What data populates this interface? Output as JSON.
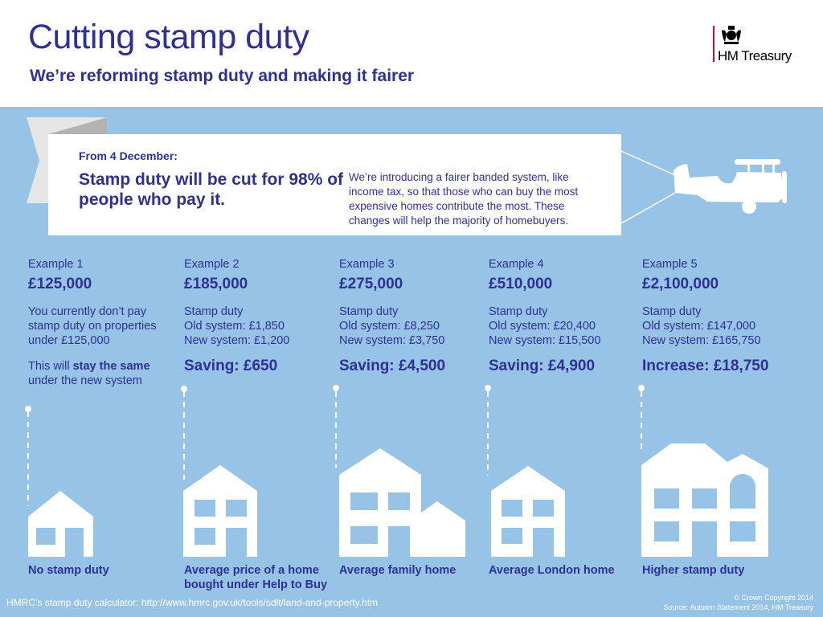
{
  "header": {
    "title": "Cutting stamp duty",
    "subtitle": "We’re reforming stamp duty and making it fairer",
    "logo_text": "HM Treasury"
  },
  "banner": {
    "from": "From 4 December:",
    "headline": "Stamp duty will be cut for 98% of people who pay it.",
    "description": "We’re introducing a fairer banded system, like income tax, so that those who can buy the most expensive homes contribute the most. These changes will help the majority of homebuyers."
  },
  "examples": [
    {
      "label": "Example 1",
      "price": "£125,000",
      "body": "You currently don’t pay stamp duty on properties under £125,000",
      "note_pre": "This will ",
      "note_bold": "stay the same",
      "note_post": " under the new system",
      "caption": "No stamp duty"
    },
    {
      "label": "Example 2",
      "price": "£185,000",
      "line1": "Stamp duty",
      "line2": "Old system: £1,850",
      "line3": "New system: £1,200",
      "result": "Saving: £650",
      "caption": "Average price of a home bought under Help to Buy"
    },
    {
      "label": "Example 3",
      "price": "£275,000",
      "line1": "Stamp duty",
      "line2": "Old system: £8,250",
      "line3": "New system: £3,750",
      "result": "Saving: £4,500",
      "caption": "Average family home"
    },
    {
      "label": "Example 4",
      "price": "£510,000",
      "line1": "Stamp duty",
      "line2": "Old system: £20,400",
      "line3": "New system: £15,500",
      "result": "Saving: £4,900",
      "caption": "Average London home"
    },
    {
      "label": "Example 5",
      "price": "£2,100,000",
      "line1": "Stamp duty",
      "line2": "Old system: £147,000",
      "line3": "New system: £165,750",
      "result": "Increase: £18,750",
      "caption": "Higher stamp duty"
    }
  ],
  "footer": {
    "calculator": "HMRC’s stamp duty calculator: http://www.hmrc.gov.uk/tools/sdlt/land-and-property.htm",
    "copyright": "© Crown Copyright 2014",
    "source": "Source: Autumn Statement 2014, HM Treasury"
  },
  "colors": {
    "background": "#96c3e6",
    "text": "#2e3192",
    "logo_bar": "#c8102e"
  },
  "icons": [
    "royal-crest-icon",
    "biplane-icon",
    "house-icon"
  ]
}
